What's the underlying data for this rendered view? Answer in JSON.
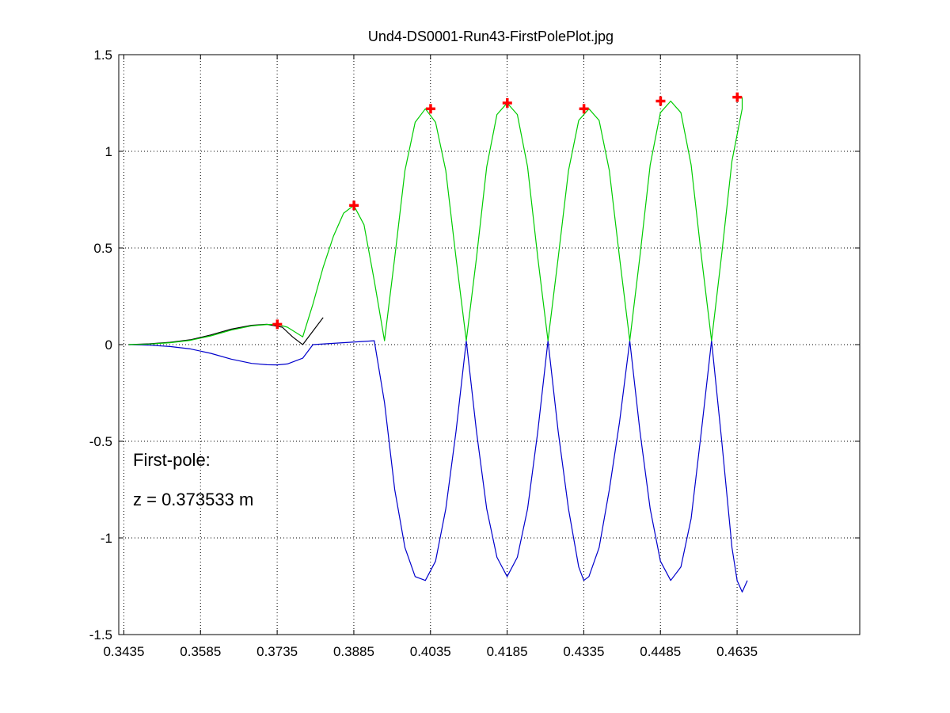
{
  "chart_data": {
    "type": "line",
    "title": "Und4-DS0001-Run43-FirstPolePlot.jpg",
    "xlabel": "",
    "ylabel": "",
    "xlim": [
      0.3425,
      0.4875
    ],
    "ylim": [
      -1.5,
      1.5
    ],
    "grid": true,
    "x_ticks": [
      0.3435,
      0.3585,
      0.3735,
      0.3885,
      0.4035,
      0.4185,
      0.4335,
      0.4485,
      0.4635
    ],
    "x_tick_labels": [
      "0.3435",
      "0.3585",
      "0.3735",
      "0.3885",
      "0.4035",
      "0.4185",
      "0.4335",
      "0.4485",
      "0.4635"
    ],
    "y_ticks": [
      -1.5,
      -1,
      -0.5,
      0,
      0.5,
      1,
      1.5
    ],
    "y_tick_labels": [
      "-1.5",
      "-1",
      "-0.5",
      "0",
      "0.5",
      "1",
      "1.5"
    ],
    "annotations": [
      "First-pole:",
      "z = 0.373533  m"
    ],
    "colors": {
      "positive": "#00cc00",
      "negative": "#0000cc",
      "abs": "#000000",
      "peak_marker": "#ff0000",
      "grid": "#000000"
    },
    "pole_positions": [
      0.37353,
      0.38853,
      0.40353,
      0.41853,
      0.43353,
      0.44853,
      0.46353
    ],
    "pole_peaks": [
      0.105,
      0.72,
      1.22,
      1.25,
      1.22,
      1.26,
      1.28
    ],
    "series": [
      {
        "role": "positive",
        "x": [
          0.3445,
          0.3485,
          0.3525,
          0.3565,
          0.3605,
          0.3645,
          0.3685,
          0.3715,
          0.3735,
          0.3755,
          0.3785,
          0.3805,
          0.3825,
          0.3845,
          0.3865,
          0.3885,
          0.3905,
          0.3925,
          0.3945,
          0.3965,
          0.3985,
          0.4005,
          0.4025,
          0.4045,
          0.4065,
          0.4085,
          0.4105,
          0.4125,
          0.4145,
          0.4165,
          0.4185,
          0.4205,
          0.4225,
          0.4245,
          0.4265,
          0.4285,
          0.4305,
          0.4325,
          0.4345,
          0.4365,
          0.4385,
          0.4405,
          0.4425,
          0.4445,
          0.4465,
          0.4485,
          0.4505,
          0.4525,
          0.4545,
          0.4565,
          0.4585,
          0.4605,
          0.4625,
          0.4645,
          0.4645
        ],
        "y": [
          0.0,
          0.003,
          0.01,
          0.022,
          0.045,
          0.075,
          0.097,
          0.104,
          0.105,
          0.09,
          0.04,
          0.21,
          0.4,
          0.56,
          0.68,
          0.72,
          0.62,
          0.33,
          0.02,
          0.45,
          0.9,
          1.15,
          1.22,
          1.15,
          0.9,
          0.45,
          0.02,
          0.45,
          0.92,
          1.19,
          1.25,
          1.19,
          0.92,
          0.45,
          0.02,
          0.45,
          0.9,
          1.16,
          1.22,
          1.16,
          0.9,
          0.45,
          0.02,
          0.46,
          0.93,
          1.2,
          1.26,
          1.2,
          0.93,
          0.46,
          0.02,
          0.47,
          0.95,
          1.22,
          1.28
        ]
      },
      {
        "role": "negative",
        "x": [
          0.3445,
          0.3485,
          0.3525,
          0.3565,
          0.3605,
          0.3645,
          0.3685,
          0.3715,
          0.3735,
          0.3755,
          0.3785,
          0.3805,
          0.3925,
          0.3945,
          0.3965,
          0.3985,
          0.4005,
          0.4025,
          0.4045,
          0.4065,
          0.4085,
          0.4105,
          0.4125,
          0.4145,
          0.4165,
          0.4185,
          0.4205,
          0.4225,
          0.4245,
          0.4265,
          0.4285,
          0.4305,
          0.4325,
          0.4335,
          0.4345,
          0.4365,
          0.4385,
          0.4405,
          0.4425,
          0.4445,
          0.4465,
          0.4485,
          0.4505,
          0.4525,
          0.4545,
          0.4565,
          0.4585,
          0.4605,
          0.4625,
          0.4635,
          0.4645,
          0.4655
        ],
        "y": [
          0.0,
          -0.003,
          -0.01,
          -0.022,
          -0.045,
          -0.075,
          -0.097,
          -0.104,
          -0.105,
          -0.1,
          -0.07,
          0.0,
          0.02,
          -0.3,
          -0.75,
          -1.05,
          -1.2,
          -1.22,
          -1.12,
          -0.85,
          -0.45,
          0.02,
          -0.45,
          -0.85,
          -1.1,
          -1.2,
          -1.1,
          -0.85,
          -0.45,
          0.02,
          -0.45,
          -0.85,
          -1.15,
          -1.22,
          -1.2,
          -1.05,
          -0.75,
          -0.4,
          0.02,
          -0.45,
          -0.85,
          -1.12,
          -1.22,
          -1.15,
          -0.9,
          -0.45,
          0.02,
          -0.5,
          -1.05,
          -1.22,
          -1.28,
          -1.22
        ]
      },
      {
        "role": "abs",
        "x": [
          0.3445,
          0.3485,
          0.3525,
          0.3565,
          0.3605,
          0.3645,
          0.3685,
          0.3715,
          0.3745,
          0.3765,
          0.3785,
          0.3805,
          0.3825
        ],
        "y": [
          0.0,
          0.004,
          0.012,
          0.025,
          0.05,
          0.08,
          0.1,
          0.105,
          0.09,
          0.04,
          0.0,
          0.07,
          0.14
        ]
      }
    ]
  }
}
